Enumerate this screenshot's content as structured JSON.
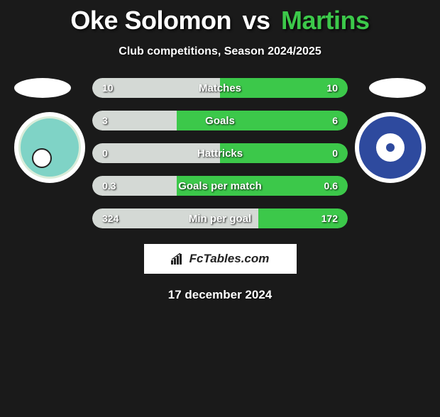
{
  "header": {
    "player1_name": "Oke Solomon",
    "vs_label": "vs",
    "player2_name": "Martins",
    "subtitle": "Club competitions, Season 2024/2025"
  },
  "colors": {
    "player1": "#d4d9d5",
    "player2": "#3cc84a",
    "title_p1": "#ffffff",
    "title_p2": "#3cc84a",
    "background": "#1a1a1a"
  },
  "stats": [
    {
      "label": "Matches",
      "left_value": "10",
      "right_value": "10",
      "left_pct": 50
    },
    {
      "label": "Goals",
      "left_value": "3",
      "right_value": "6",
      "left_pct": 33
    },
    {
      "label": "Hattricks",
      "left_value": "0",
      "right_value": "0",
      "left_pct": 50
    },
    {
      "label": "Goals per match",
      "left_value": "0.3",
      "right_value": "0.6",
      "left_pct": 33
    },
    {
      "label": "Min per goal",
      "left_value": "324",
      "right_value": "172",
      "left_pct": 65
    }
  ],
  "brand": {
    "text": "FcTables.com"
  },
  "footer": {
    "date": "17 december 2024"
  },
  "badges": {
    "left_alt": "Bendel Insurance FC crest",
    "right_alt": "Lobi Stars FC crest"
  }
}
